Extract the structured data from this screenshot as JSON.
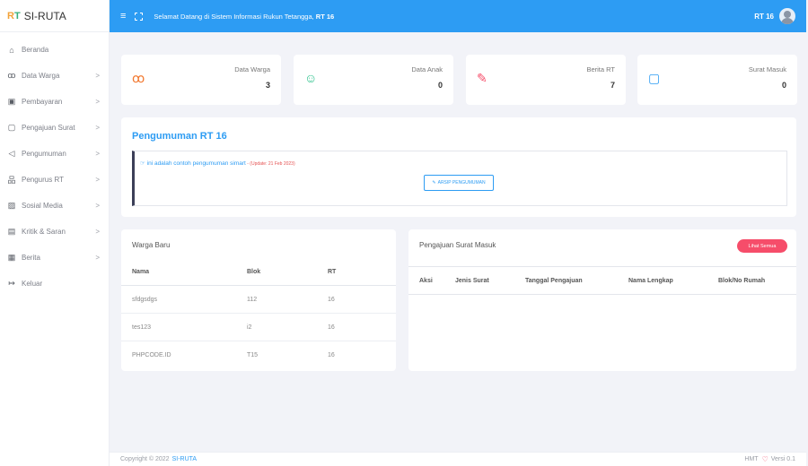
{
  "brand": {
    "logo": "RT",
    "name": "SI-RUTA"
  },
  "sidebar": {
    "items": [
      {
        "label": "Beranda",
        "icon": "home-icon",
        "glyph": "⌂",
        "has_chevron": false
      },
      {
        "label": "Data Warga",
        "icon": "users-icon",
        "glyph": "ꝏ",
        "has_chevron": true
      },
      {
        "label": "Pembayaran",
        "icon": "money-icon",
        "glyph": "▣",
        "has_chevron": true
      },
      {
        "label": "Pengajuan Surat",
        "icon": "clipboard-icon",
        "glyph": "▢",
        "has_chevron": true
      },
      {
        "label": "Pengumuman",
        "icon": "megaphone-icon",
        "glyph": "◁",
        "has_chevron": true
      },
      {
        "label": "Pengurus RT",
        "icon": "org-icon",
        "glyph": "品",
        "has_chevron": true
      },
      {
        "label": "Sosial Media",
        "icon": "image-icon",
        "glyph": "▨",
        "has_chevron": true
      },
      {
        "label": "Kritik & Saran",
        "icon": "chat-icon",
        "glyph": "▤",
        "has_chevron": true
      },
      {
        "label": "Berita",
        "icon": "news-icon",
        "glyph": "▦",
        "has_chevron": true
      },
      {
        "label": "Keluar",
        "icon": "logout-icon",
        "glyph": "↦",
        "has_chevron": false
      }
    ],
    "chevron": ">"
  },
  "header": {
    "welcome_prefix": "Selamat Datang di Sistem Informasi Rukun Tetangga, ",
    "welcome_rt": "RT 16",
    "user": "RT 16"
  },
  "stats": [
    {
      "title": "Data Warga",
      "value": "3",
      "icon": "users-icon",
      "glyph": "ꝏ",
      "color": "#f2782f"
    },
    {
      "title": "Data Anak",
      "value": "0",
      "icon": "baby-icon",
      "glyph": "☺",
      "color": "#2fc28d"
    },
    {
      "title": "Berita RT",
      "value": "7",
      "icon": "edit-icon",
      "glyph": "✎",
      "color": "#f64d6a"
    },
    {
      "title": "Surat Masuk",
      "value": "0",
      "icon": "clipboard-icon",
      "glyph": "▢",
      "color": "#2d9cf3"
    }
  ],
  "announcement": {
    "title": "Pengumuman RT 16",
    "text": "ini adalah contoh pengumuman simart",
    "update": " - (Update: 21 Feb 2023)",
    "archive_button": "ARSIP PENGUMUMAN"
  },
  "warga_baru": {
    "title": "Warga Baru",
    "columns": [
      "Nama",
      "Blok",
      "RT"
    ],
    "rows": [
      [
        "sfdgsdgs",
        "112",
        "16"
      ],
      [
        "tes123",
        "i2",
        "16"
      ],
      [
        "PHPCODE.ID",
        "T15",
        "16"
      ]
    ]
  },
  "surat_masuk": {
    "title": "Pengajuan Surat Masuk",
    "button": "Lihat Semua",
    "columns": [
      "Aksi",
      "Jenis Surat",
      "Tanggal Pengajuan",
      "Nama Lengkap",
      "Blok/No Rumah"
    ]
  },
  "footer": {
    "copyright": "Copyright © 2022",
    "link": "SI-RUTA",
    "right_prefix": "HMT",
    "version": "Versi 0.1"
  }
}
